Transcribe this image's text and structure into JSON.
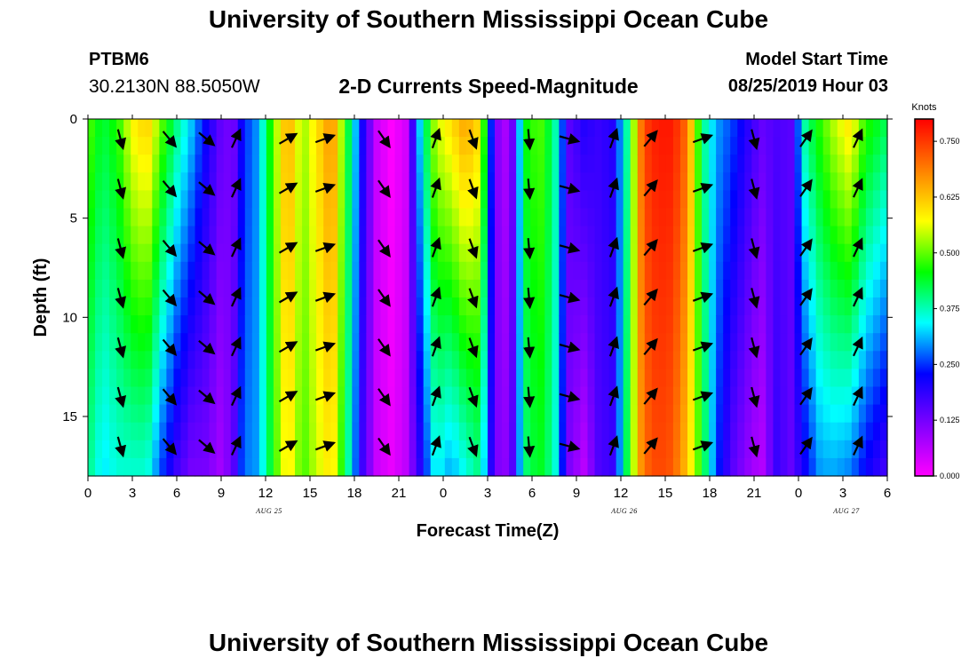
{
  "page": {
    "title_top": "University of Southern Mississippi Ocean Cube",
    "title_bottom": "University of Southern Mississippi Ocean Cube",
    "station_id": "PTBM6",
    "station_coords": "30.2130N 88.5050W",
    "model_start_label": "Model Start Time",
    "model_start_value": "08/25/2019 Hour 03"
  },
  "chart_data": {
    "type": "heatmap",
    "title": "2-D Currents Speed-Magnitude",
    "xlabel": "Forecast Time(Z)",
    "ylabel": "Depth (ft)",
    "x_tick_labels": [
      "0",
      "3",
      "6",
      "9",
      "12",
      "15",
      "18",
      "21",
      "0",
      "3",
      "6",
      "9",
      "12",
      "15",
      "18",
      "21",
      "0",
      "3",
      "6"
    ],
    "x_hours": [
      0,
      3,
      6,
      9,
      12,
      15,
      18,
      21,
      24,
      27,
      30,
      33,
      36,
      39,
      42,
      45,
      48,
      51,
      54
    ],
    "x_range_hours": [
      0,
      54
    ],
    "date_labels": [
      {
        "text": "AUG 25",
        "hour": 12
      },
      {
        "text": "AUG 26",
        "hour": 36
      },
      {
        "text": "AUG 27",
        "hour": 51
      }
    ],
    "y_ticks": [
      0,
      5,
      10,
      15
    ],
    "y_tick_labels": [
      "0",
      "5",
      "10",
      "15"
    ],
    "y_range_ft": [
      0,
      18
    ],
    "colorbar": {
      "unit": "Knots",
      "range": [
        0,
        0.8
      ],
      "tick_values": [
        0.0,
        0.125,
        0.25,
        0.375,
        0.5,
        0.625,
        0.75
      ],
      "tick_labels": [
        "0.000",
        "0.125",
        "0.250",
        "0.375",
        "0.500",
        "0.625",
        "0.750"
      ],
      "colors": [
        "#ff00ff",
        "#8000ff",
        "#0000ff",
        "#00ffff",
        "#00ff00",
        "#ffff00",
        "#ff8000",
        "#ff0000"
      ]
    },
    "speed_profile_knots": [
      {
        "hour": 0.0,
        "surface": 0.5,
        "bottom": 0.4
      },
      {
        "hour": 1.0,
        "surface": 0.43,
        "bottom": 0.33
      },
      {
        "hour": 2.0,
        "surface": 0.47,
        "bottom": 0.36
      },
      {
        "hour": 3.0,
        "surface": 0.58,
        "bottom": 0.36
      },
      {
        "hour": 4.0,
        "surface": 0.62,
        "bottom": 0.36
      },
      {
        "hour": 5.0,
        "surface": 0.5,
        "bottom": 0.25
      },
      {
        "hour": 6.0,
        "surface": 0.4,
        "bottom": 0.17
      },
      {
        "hour": 7.0,
        "surface": 0.32,
        "bottom": 0.12
      },
      {
        "hour": 8.0,
        "surface": 0.22,
        "bottom": 0.12
      },
      {
        "hour": 9.0,
        "surface": 0.14,
        "bottom": 0.08
      },
      {
        "hour": 9.8,
        "surface": 0.12,
        "bottom": 0.14
      },
      {
        "hour": 10.5,
        "surface": 0.24,
        "bottom": 0.28
      },
      {
        "hour": 11.5,
        "surface": 0.3,
        "bottom": 0.3
      },
      {
        "hour": 12.5,
        "surface": 0.5,
        "bottom": 0.46
      },
      {
        "hour": 13.5,
        "surface": 0.66,
        "bottom": 0.6
      },
      {
        "hour": 14.5,
        "surface": 0.52,
        "bottom": 0.48
      },
      {
        "hour": 15.5,
        "surface": 0.6,
        "bottom": 0.55
      },
      {
        "hour": 16.5,
        "surface": 0.68,
        "bottom": 0.6
      },
      {
        "hour": 17.5,
        "surface": 0.45,
        "bottom": 0.4
      },
      {
        "hour": 18.5,
        "surface": 0.22,
        "bottom": 0.18
      },
      {
        "hour": 19.5,
        "surface": 0.05,
        "bottom": 0.05
      },
      {
        "hour": 20.5,
        "surface": 0.0,
        "bottom": 0.02
      },
      {
        "hour": 21.5,
        "surface": 0.04,
        "bottom": 0.06
      },
      {
        "hour": 22.5,
        "surface": 0.35,
        "bottom": 0.2
      },
      {
        "hour": 23.5,
        "surface": 0.55,
        "bottom": 0.35
      },
      {
        "hour": 24.5,
        "surface": 0.6,
        "bottom": 0.3
      },
      {
        "hour": 25.5,
        "surface": 0.66,
        "bottom": 0.35
      },
      {
        "hour": 26.5,
        "surface": 0.6,
        "bottom": 0.4
      },
      {
        "hour": 27.5,
        "surface": 0.12,
        "bottom": 0.12
      },
      {
        "hour": 28.5,
        "surface": 0.06,
        "bottom": 0.1
      },
      {
        "hour": 29.5,
        "surface": 0.45,
        "bottom": 0.4
      },
      {
        "hour": 30.5,
        "surface": 0.5,
        "bottom": 0.45
      },
      {
        "hour": 31.5,
        "surface": 0.4,
        "bottom": 0.38
      },
      {
        "hour": 32.5,
        "surface": 0.15,
        "bottom": 0.12
      },
      {
        "hour": 33.5,
        "surface": 0.2,
        "bottom": 0.06
      },
      {
        "hour": 34.5,
        "surface": 0.18,
        "bottom": 0.16
      },
      {
        "hour": 35.5,
        "surface": 0.2,
        "bottom": 0.18
      },
      {
        "hour": 36.5,
        "surface": 0.4,
        "bottom": 0.45
      },
      {
        "hour": 37.5,
        "surface": 0.74,
        "bottom": 0.7
      },
      {
        "hour": 38.5,
        "surface": 0.78,
        "bottom": 0.74
      },
      {
        "hour": 39.5,
        "surface": 0.78,
        "bottom": 0.72
      },
      {
        "hour": 40.5,
        "surface": 0.7,
        "bottom": 0.62
      },
      {
        "hour": 41.5,
        "surface": 0.4,
        "bottom": 0.45
      },
      {
        "hour": 42.5,
        "surface": 0.3,
        "bottom": 0.25
      },
      {
        "hour": 43.5,
        "surface": 0.26,
        "bottom": 0.15
      },
      {
        "hour": 44.5,
        "surface": 0.2,
        "bottom": 0.1
      },
      {
        "hour": 45.5,
        "surface": 0.14,
        "bottom": 0.06
      },
      {
        "hour": 46.5,
        "surface": 0.16,
        "bottom": 0.18
      },
      {
        "hour": 47.5,
        "surface": 0.15,
        "bottom": 0.14
      },
      {
        "hour": 48.5,
        "surface": 0.4,
        "bottom": 0.22
      },
      {
        "hour": 49.5,
        "surface": 0.48,
        "bottom": 0.3
      },
      {
        "hour": 50.5,
        "surface": 0.55,
        "bottom": 0.3
      },
      {
        "hour": 51.5,
        "surface": 0.6,
        "bottom": 0.28
      },
      {
        "hour": 52.5,
        "surface": 0.48,
        "bottom": 0.22
      },
      {
        "hour": 53.5,
        "surface": 0.44,
        "bottom": 0.18
      },
      {
        "hour": 54.0,
        "surface": 0.42,
        "bottom": 0.16
      }
    ],
    "vector_columns": [
      {
        "hour": 2.2,
        "angle_deg": 165
      },
      {
        "hour": 5.5,
        "angle_deg": 140
      },
      {
        "hour": 8.0,
        "angle_deg": 130
      },
      {
        "hour": 10.0,
        "angle_deg": 25
      },
      {
        "hour": 13.5,
        "angle_deg": 60
      },
      {
        "hour": 16.0,
        "angle_deg": 70
      },
      {
        "hour": 20.0,
        "angle_deg": 145
      },
      {
        "hour": 23.5,
        "angle_deg": 20
      },
      {
        "hour": 26.0,
        "angle_deg": 160
      },
      {
        "hour": 29.8,
        "angle_deg": 175
      },
      {
        "hour": 32.5,
        "angle_deg": 105
      },
      {
        "hour": 35.5,
        "angle_deg": 20
      },
      {
        "hour": 38.0,
        "angle_deg": 40
      },
      {
        "hour": 41.5,
        "angle_deg": 70
      },
      {
        "hour": 45.0,
        "angle_deg": 165
      },
      {
        "hour": 48.5,
        "angle_deg": 35
      },
      {
        "hour": 52.0,
        "angle_deg": 25
      }
    ],
    "vector_depths_ft": [
      1.0,
      3.5,
      6.5,
      9.0,
      11.5,
      14.0,
      16.5
    ]
  }
}
